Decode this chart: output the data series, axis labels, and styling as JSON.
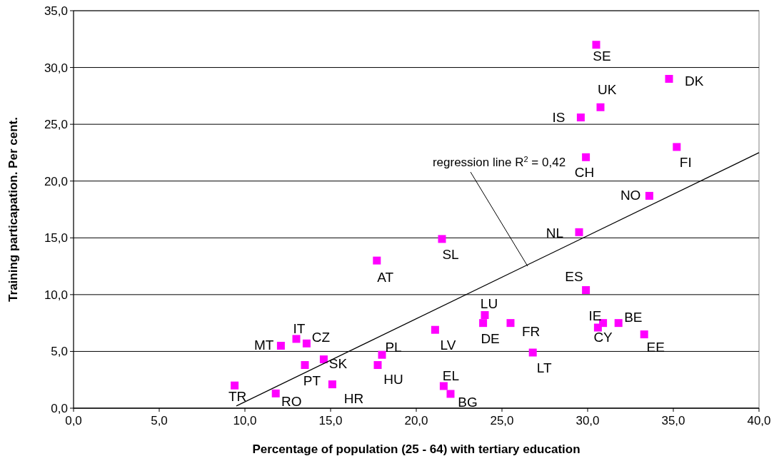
{
  "chart_data": {
    "type": "scatter",
    "xlabel": "Percentage of population (25 - 64) with tertiary education",
    "ylabel": "Training particapation. Per cent.",
    "xlim": [
      0,
      40
    ],
    "ylim": [
      0,
      35
    ],
    "xticks": [
      {
        "value": 0,
        "label": "0,0"
      },
      {
        "value": 5,
        "label": "5,0"
      },
      {
        "value": 10,
        "label": "10,0"
      },
      {
        "value": 15,
        "label": "15,0"
      },
      {
        "value": 20,
        "label": "20,0"
      },
      {
        "value": 25,
        "label": "25,0"
      },
      {
        "value": 30,
        "label": "30,0"
      },
      {
        "value": 35,
        "label": "35,0"
      },
      {
        "value": 40,
        "label": "40,0"
      }
    ],
    "yticks": [
      {
        "value": 0,
        "label": "0,0"
      },
      {
        "value": 5,
        "label": "5,0"
      },
      {
        "value": 10,
        "label": "10,0"
      },
      {
        "value": 15,
        "label": "15,0"
      },
      {
        "value": 20,
        "label": "20,0"
      },
      {
        "value": 25,
        "label": "25,0"
      },
      {
        "value": 30,
        "label": "30,0"
      },
      {
        "value": 35,
        "label": "35,0"
      }
    ],
    "grid": "y",
    "marker": "square",
    "series": [
      {
        "color": "#ff00ff",
        "x": [
          30.5,
          34.75,
          30.75,
          29.6,
          29.9,
          35.2,
          33.6,
          29.5,
          21.5,
          17.7,
          29.9,
          24.0,
          23.9,
          25.5,
          30.6,
          30.9,
          31.8,
          33.3,
          21.1,
          26.8,
          13.0,
          13.6,
          12.1,
          14.6,
          13.5,
          18.0,
          17.75,
          15.1,
          21.6,
          22.0,
          9.4,
          11.8
        ],
        "values": [
          32.0,
          29.0,
          26.5,
          25.6,
          22.1,
          23.0,
          18.7,
          15.5,
          14.9,
          13.0,
          10.4,
          8.2,
          7.5,
          7.5,
          7.1,
          7.5,
          7.5,
          6.5,
          6.9,
          4.9,
          6.1,
          5.7,
          5.5,
          4.3,
          3.8,
          4.7,
          3.8,
          2.1,
          1.95,
          1.26,
          2.0,
          1.3
        ]
      },
      {
        "type": "line",
        "color": "#000000",
        "marker": "none",
        "x": [
          9.5,
          40
        ],
        "values": [
          0.2,
          22.5
        ]
      }
    ],
    "annotations": [
      {
        "text": "SE",
        "x": 30.5,
        "y": 32.0
      },
      {
        "text": "DK",
        "x": 34.75,
        "y": 29.0
      },
      {
        "text": "UK",
        "x": 30.75,
        "y": 26.5
      },
      {
        "text": "IS",
        "x": 29.6,
        "y": 25.6
      },
      {
        "text": "CH",
        "x": 29.9,
        "y": 22.1
      },
      {
        "text": "FI",
        "x": 35.2,
        "y": 23.0
      },
      {
        "text": "NO",
        "x": 33.6,
        "y": 18.7
      },
      {
        "text": "NL",
        "x": 29.5,
        "y": 15.5
      },
      {
        "text": "SL",
        "x": 21.5,
        "y": 14.9
      },
      {
        "text": "AT",
        "x": 17.7,
        "y": 13.0
      },
      {
        "text": "ES",
        "x": 29.9,
        "y": 10.4
      },
      {
        "text": "LU",
        "x": 24.0,
        "y": 8.2
      },
      {
        "text": "DE",
        "x": 23.9,
        "y": 7.5
      },
      {
        "text": "FR",
        "x": 25.5,
        "y": 7.5
      },
      {
        "text": "IE",
        "x": 30.6,
        "y": 7.1
      },
      {
        "text": "CY",
        "x": 30.9,
        "y": 7.5
      },
      {
        "text": "BE",
        "x": 31.8,
        "y": 7.5
      },
      {
        "text": "EE",
        "x": 33.3,
        "y": 6.5
      },
      {
        "text": "LV",
        "x": 21.1,
        "y": 6.9
      },
      {
        "text": "LT",
        "x": 26.8,
        "y": 4.9
      },
      {
        "text": "IT",
        "x": 13.0,
        "y": 6.1
      },
      {
        "text": "CZ",
        "x": 13.6,
        "y": 5.7
      },
      {
        "text": "MT",
        "x": 12.1,
        "y": 5.5
      },
      {
        "text": "SK",
        "x": 14.6,
        "y": 4.3
      },
      {
        "text": "PT",
        "x": 13.5,
        "y": 3.8
      },
      {
        "text": "PL",
        "x": 18.0,
        "y": 4.7
      },
      {
        "text": "HU",
        "x": 17.75,
        "y": 3.8
      },
      {
        "text": "HR",
        "x": 15.1,
        "y": 2.1
      },
      {
        "text": "EL",
        "x": 21.6,
        "y": 1.95
      },
      {
        "text": "BG",
        "x": 22.0,
        "y": 1.26
      },
      {
        "text": "TR",
        "x": 9.4,
        "y": 2.0
      },
      {
        "text": "RO",
        "x": 11.8,
        "y": 1.3
      },
      {
        "text": "regression line R$^{2}$ = 0,42",
        "x": 26.5,
        "y": 12.5
      }
    ]
  }
}
